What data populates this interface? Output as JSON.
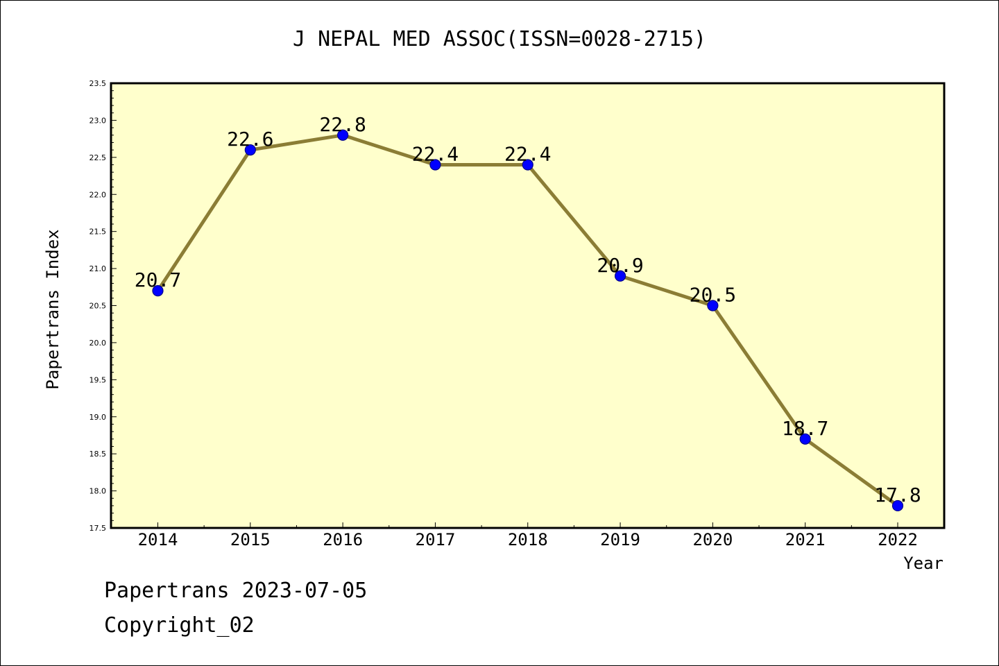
{
  "chart_data": {
    "type": "line",
    "title": "J NEPAL MED ASSOC(ISSN=0028-2715)",
    "xlabel": "Year",
    "ylabel": "Papertrans Index",
    "categories": [
      "2014",
      "2015",
      "2016",
      "2017",
      "2018",
      "2019",
      "2020",
      "2021",
      "2022"
    ],
    "values": [
      20.7,
      22.6,
      22.8,
      22.4,
      22.4,
      20.9,
      20.5,
      18.7,
      17.8
    ],
    "data_labels": [
      "20.7",
      "22.6",
      "22.8",
      "22.4",
      "22.4",
      "20.9",
      "20.5",
      "18.7",
      "17.8"
    ],
    "ylim": [
      17.5,
      23.5
    ],
    "yticks": [
      "17.5",
      "18.0",
      "18.5",
      "19.0",
      "19.5",
      "20.0",
      "20.5",
      "21.0",
      "21.5",
      "22.0",
      "22.5",
      "23.0",
      "23.5"
    ],
    "grid": false,
    "colors": {
      "plot_background": "#ffffcc",
      "line": "#8b7d35",
      "marker": "#0000ff",
      "marker_edge": "#00008b"
    }
  },
  "footer": {
    "line1": "Papertrans 2023-07-05",
    "line2": "Copyright_02"
  }
}
